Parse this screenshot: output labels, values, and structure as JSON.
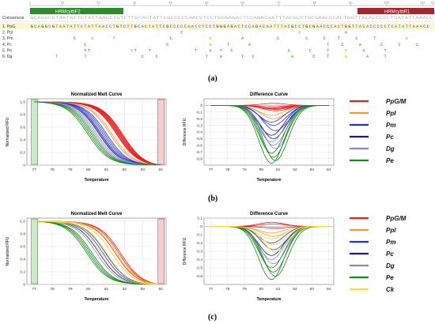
{
  "panel_labels": [
    "(a)",
    "(b)",
    "(c)"
  ],
  "alignment": {
    "ruler_ticks": [
      "1",
      "10",
      "20",
      "30",
      "40",
      "50",
      "60",
      "70",
      "80",
      "90",
      "100",
      "110",
      "113"
    ],
    "primer_f": "HRMcytbF2",
    "primer_r": "HRMcytbR1",
    "consensus_label": "Consensus",
    "consensus_seq": "GCAGGCGTAATATTCTATTAACCTGTCTTGCACTATTCGCCCCCAACCTCCTGGGAGACTCCAGACAATTTACGCCTGCGAACCCACTGGTTACACCCCCTCATATTAAACC",
    "rows": [
      {
        "label": "1. PpG",
        "seq": "GCAGGCGTAATATTCTATTAACCTGTCTTGCACTATTCGCCCCCAACCTCCTGGGAGACTCCAGACAATTTACGCCTGCGAACCCACTGGTTACACCCCCTCATATTAAACC"
      },
      {
        "label": "2. PpI",
        "seq": "                                          C                                G            A                         "
      },
      {
        "label": "3. Pm",
        "seq": "            C    G     T               C          G        A         C       C    C   T    C    T        G        "
      },
      {
        "label": "4. Pc",
        "seq": "               C                      C           G    T     A                     T   C    A     C    C    C    "
      },
      {
        "label": "5. Pe",
        "seq": "               YT           GT   T            T   A  T  C               A     C    T    G    A     T           "
      },
      {
        "label": "6. Dg",
        "seq": "       T       T               C   C             T   A     T  C          A     C   T    G     A    T           "
      }
    ]
  },
  "chart_data": [
    {
      "type": "line",
      "title": "Normalized Melt Curve",
      "xlabel": "Temperature",
      "ylabel": "Normalized RFU",
      "xlim": [
        76.6,
        84.3
      ],
      "ylim": [
        0,
        1.05
      ],
      "xticks": [
        77,
        78,
        79,
        80,
        81,
        82,
        83,
        84
      ],
      "yticks": [
        0,
        0.2,
        0.4,
        0.6,
        0.8,
        1.0
      ],
      "grid": true,
      "series": [
        {
          "color": "#ee1c1c",
          "midpoints": [
            81.55,
            81.6,
            81.65,
            81.7,
            81.75,
            81.8,
            81.85,
            81.9
          ]
        },
        {
          "color": "#f39a2c",
          "midpoints": [
            81.2,
            81.3
          ]
        },
        {
          "color": "#2233dd",
          "midpoints": [
            80.8,
            80.9,
            81.0
          ]
        },
        {
          "color": "#1a1a8c",
          "midpoints": [
            80.6,
            80.7
          ]
        },
        {
          "color": "#8a86cc",
          "midpoints": [
            80.35,
            80.45,
            80.55,
            80.65
          ]
        },
        {
          "color": "#158a15",
          "midpoints": [
            79.95,
            80.05,
            80.15,
            80.25
          ]
        }
      ]
    },
    {
      "type": "line",
      "title": "Difference Curve",
      "xlabel": "Temperature",
      "ylabel": "Difference RFU",
      "xlim": [
        76.6,
        84.3
      ],
      "ylim": [
        -0.9,
        0.1
      ],
      "xticks": [
        77,
        78,
        79,
        80,
        81,
        82,
        83,
        84
      ],
      "yticks": [
        0,
        -0.1,
        -0.2,
        -0.3,
        -0.4,
        -0.5,
        -0.6,
        -0.7,
        -0.8
      ],
      "grid": true,
      "series": [
        {
          "color": "#ee1c1c",
          "minima": [
            -0.02,
            -0.05,
            -0.08,
            -0.04,
            0.03,
            -0.06
          ]
        },
        {
          "color": "#f39a2c",
          "minima": [
            -0.15,
            -0.2
          ]
        },
        {
          "color": "#2233dd",
          "minima": [
            -0.25,
            -0.3,
            -0.38
          ]
        },
        {
          "color": "#1a1a8c",
          "minima": [
            -0.45,
            -0.5
          ]
        },
        {
          "color": "#8a86cc",
          "minima": [
            -0.55,
            -0.6,
            -0.65
          ]
        },
        {
          "color": "#158a15",
          "minima": [
            -0.72,
            -0.78,
            -0.83,
            -0.87
          ]
        }
      ]
    },
    {
      "type": "line",
      "title": "Normalized Melt Curve",
      "xlabel": "Temperature",
      "ylabel": "Normalized RFU",
      "xlim": [
        76.6,
        84.3
      ],
      "ylim": [
        0,
        1.05
      ],
      "xticks": [
        77,
        78,
        79,
        80,
        81,
        82,
        83,
        84
      ],
      "yticks": [
        0,
        0.2,
        0.4,
        0.6,
        0.8,
        1.0
      ],
      "grid": true,
      "series": [
        {
          "color": "#ee1c1c",
          "midpoints": [
            81.5,
            81.6,
            81.7,
            81.8
          ]
        },
        {
          "color": "#f39a2c",
          "midpoints": [
            81.3
          ]
        },
        {
          "color": "#2233dd",
          "midpoints": [
            80.8,
            80.95
          ]
        },
        {
          "color": "#1a1a8c",
          "midpoints": [
            80.6
          ]
        },
        {
          "color": "#8a86cc",
          "midpoints": [
            80.45
          ]
        },
        {
          "color": "#158a15",
          "midpoints": [
            79.9,
            80.0,
            80.1,
            80.2
          ]
        },
        {
          "color": "#f2e22a",
          "midpoints": [
            80.7,
            81.0,
            81.3,
            81.6
          ]
        }
      ]
    },
    {
      "type": "line",
      "title": "Difference Curve",
      "xlabel": "Temperature",
      "ylabel": "Difference RFU",
      "xlim": [
        76.6,
        84.3
      ],
      "ylim": [
        -0.7,
        0.1
      ],
      "xticks": [
        77,
        78,
        79,
        80,
        81,
        82,
        83,
        84
      ],
      "yticks": [
        0.1,
        0,
        -0.1,
        -0.2,
        -0.3,
        -0.4,
        -0.5,
        -0.6
      ],
      "grid": true,
      "series": [
        {
          "color": "#ee1c1c",
          "minima": [
            0.05,
            0.03,
            -0.02
          ]
        },
        {
          "color": "#f39a2c",
          "minima": [
            -0.08,
            -0.12
          ]
        },
        {
          "color": "#2233dd",
          "minima": [
            -0.2,
            -0.28
          ]
        },
        {
          "color": "#1a1a8c",
          "minima": [
            -0.35
          ]
        },
        {
          "color": "#8a86cc",
          "minima": [
            -0.4,
            -0.45
          ]
        },
        {
          "color": "#158a15",
          "minima": [
            -0.5,
            -0.55,
            -0.6,
            -0.64
          ]
        },
        {
          "color": "#f2e22a",
          "minima": [
            -0.15,
            -0.22,
            -0.3
          ]
        }
      ]
    }
  ],
  "legend_b": [
    {
      "label": "PpG/M",
      "color": "#ee1c1c"
    },
    {
      "label": "PpI",
      "color": "#f39a2c"
    },
    {
      "label": "Pm",
      "color": "#2233dd"
    },
    {
      "label": "Pc",
      "color": "#1a1a8c"
    },
    {
      "label": "Dg",
      "color": "#8a86cc"
    },
    {
      "label": "Pe",
      "color": "#158a15"
    }
  ],
  "legend_c": [
    {
      "label": "PpG/M",
      "color": "#ee1c1c"
    },
    {
      "label": "PpI",
      "color": "#f39a2c"
    },
    {
      "label": "Pm",
      "color": "#2233dd"
    },
    {
      "label": "Pc",
      "color": "#1a1a8c"
    },
    {
      "label": "Dg",
      "color": "#8a86cc"
    },
    {
      "label": "Pe",
      "color": "#158a15"
    },
    {
      "label": "Ck",
      "color": "#f2e22a"
    }
  ]
}
